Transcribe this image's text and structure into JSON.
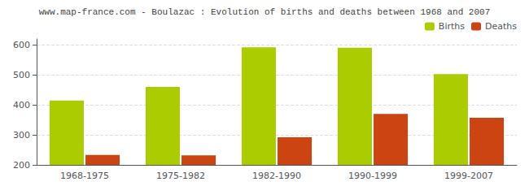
{
  "chart_data": {
    "type": "bar",
    "title": "www.map-france.com - Boulazac : Evolution of births and deaths between 1968 and 2007",
    "categories": [
      "1968-1975",
      "1975-1982",
      "1982-1990",
      "1990-1999",
      "1999-2007"
    ],
    "series": [
      {
        "name": "Births",
        "color": "#aacc00",
        "values": [
          415,
          460,
          592,
          591,
          503
        ]
      },
      {
        "name": "Deaths",
        "color": "#cc4411",
        "values": [
          233,
          232,
          292,
          370,
          357
        ]
      }
    ],
    "ylim": [
      200,
      620
    ],
    "yticks": [
      200,
      300,
      400,
      500,
      600
    ],
    "grid": true,
    "legend": "upper right"
  }
}
